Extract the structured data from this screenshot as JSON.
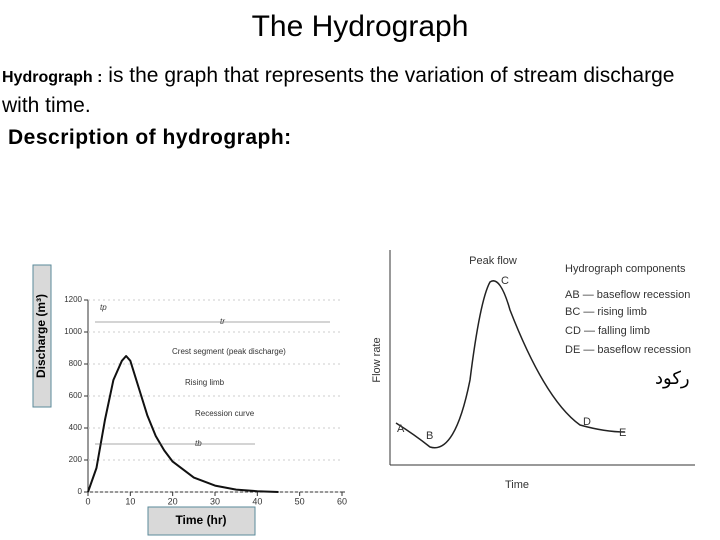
{
  "title": "The Hydrograph",
  "definition": {
    "term": "Hydrograph :",
    "text": "is the graph that represents the variation of stream discharge with time."
  },
  "subheading": "Description of hydrograph:",
  "left_figure": {
    "y_label": "Discharge (m³)",
    "x_label": "Time (hr)",
    "xlim": [
      0,
      60
    ],
    "ylim": [
      0,
      1200
    ],
    "xticks": [
      0,
      10,
      20,
      30,
      40,
      50,
      60
    ],
    "yticks": [
      0,
      200,
      400,
      600,
      800,
      1000,
      1200
    ],
    "x": [
      0,
      2,
      4,
      6,
      8,
      9,
      10,
      12,
      14,
      16,
      18,
      20,
      25,
      30,
      35,
      40,
      45
    ],
    "values": [
      0,
      150,
      450,
      700,
      820,
      850,
      820,
      650,
      480,
      350,
      260,
      190,
      90,
      40,
      15,
      5,
      0
    ],
    "annotations": [
      "Crest segment (peak discharge)",
      "Rising limb",
      "Recession curve"
    ],
    "time_labels": [
      "tp",
      "tr",
      "tb"
    ]
  },
  "right_figure": {
    "peak_label": "Peak flow",
    "y_label": "Flow rate",
    "x_label": "Time",
    "legend_title": "Hydrograph components",
    "components": [
      "AB — baseflow recession",
      "BC — rising limb",
      "CD — falling limb",
      "DE — baseflow recession"
    ],
    "points": [
      "A",
      "B",
      "C",
      "D",
      "E"
    ]
  },
  "side_note": "ركود"
}
